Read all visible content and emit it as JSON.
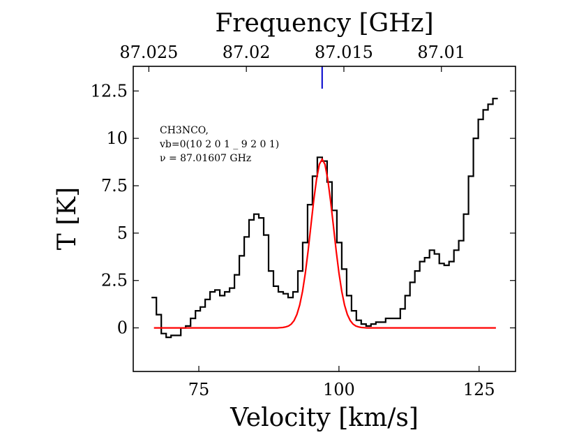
{
  "chart_data": {
    "type": "line",
    "title": "Frequency [GHz]",
    "xlabel": "Velocity [km/s]",
    "ylabel": "T [K]",
    "annotation": [
      "CH3NCO,",
      "vb=0(10 2 0 1 _ 9 2 0 1)",
      "ν = 87.01607 GHz"
    ],
    "xlim": [
      63.3,
      131.5
    ],
    "xticks": [
      75,
      100,
      125
    ],
    "ylim": [
      -2.3,
      13.8
    ],
    "yticks": [
      0,
      2.5,
      5,
      7.5,
      10,
      12.5
    ],
    "x2lim": [
      87.0258,
      87.0062
    ],
    "x2ticks": [
      87.025,
      87.02,
      87.015,
      87.01
    ],
    "marker": {
      "x": 97.0,
      "color": "#0000cc"
    },
    "series": [
      {
        "drawstyle": "steps-mid",
        "color": "#000000",
        "x": [
          67.0,
          67.87,
          68.74,
          69.61,
          70.48,
          71.35,
          72.22,
          73.09,
          73.96,
          74.83,
          75.7,
          76.57,
          77.44,
          78.31,
          79.18,
          80.05,
          80.92,
          81.79,
          82.66,
          83.53,
          84.4,
          85.27,
          86.14,
          87.01,
          87.88,
          88.75,
          89.62,
          90.49,
          91.36,
          92.23,
          93.1,
          93.97,
          94.84,
          95.71,
          96.58,
          97.45,
          98.32,
          99.19,
          100.06,
          100.93,
          101.8,
          102.67,
          103.54,
          104.41,
          105.28,
          106.15,
          107.02,
          107.89,
          108.76,
          109.63,
          110.5,
          111.37,
          112.24,
          113.11,
          113.98,
          114.85,
          115.72,
          116.59,
          117.46,
          118.33,
          119.2,
          120.07,
          120.94,
          121.81,
          122.68,
          123.55,
          124.42,
          125.29,
          126.16,
          127.03,
          127.9
        ],
        "values": [
          1.6,
          0.7,
          -0.3,
          -0.5,
          -0.4,
          -0.4,
          0,
          0.1,
          0.5,
          0.9,
          1.1,
          1.5,
          1.9,
          2.0,
          1.7,
          1.9,
          2.1,
          2.8,
          3.8,
          4.8,
          5.7,
          6.0,
          5.8,
          4.9,
          3.0,
          2.2,
          1.9,
          1.8,
          1.6,
          1.9,
          3.0,
          4.5,
          6.5,
          8.0,
          9.0,
          8.8,
          7.7,
          6.2,
          4.5,
          3.1,
          1.7,
          0.9,
          0.4,
          0.2,
          0.1,
          0.2,
          0.3,
          0.3,
          0.5,
          0.5,
          0.5,
          1.0,
          1.7,
          2.4,
          3.0,
          3.5,
          3.7,
          4.1,
          3.9,
          3.4,
          3.3,
          3.5,
          4.1,
          4.6,
          6.0,
          8.0,
          10.0,
          11.0,
          11.5,
          11.8,
          12.1
        ]
      },
      {
        "drawstyle": "default",
        "color": "#ff0000",
        "x": [
          67,
          89,
          89.5,
          90,
          90.5,
          91,
          91.5,
          92,
          92.5,
          93,
          93.5,
          94,
          94.5,
          95,
          95.5,
          96,
          96.5,
          97,
          97.5,
          98,
          98.5,
          99,
          99.5,
          100,
          100.5,
          101,
          101.5,
          102,
          102.5,
          103,
          103.5,
          104,
          104.5,
          105,
          128
        ],
        "values": [
          0,
          0,
          0.01,
          0.02,
          0.05,
          0.1,
          0.2,
          0.39,
          0.71,
          1.2,
          1.93,
          2.89,
          4.07,
          5.4,
          6.72,
          7.85,
          8.63,
          8.9,
          8.63,
          7.85,
          6.72,
          5.4,
          4.07,
          2.89,
          1.93,
          1.2,
          0.71,
          0.39,
          0.2,
          0.1,
          0.05,
          0.02,
          0.01,
          0,
          0
        ]
      }
    ]
  }
}
